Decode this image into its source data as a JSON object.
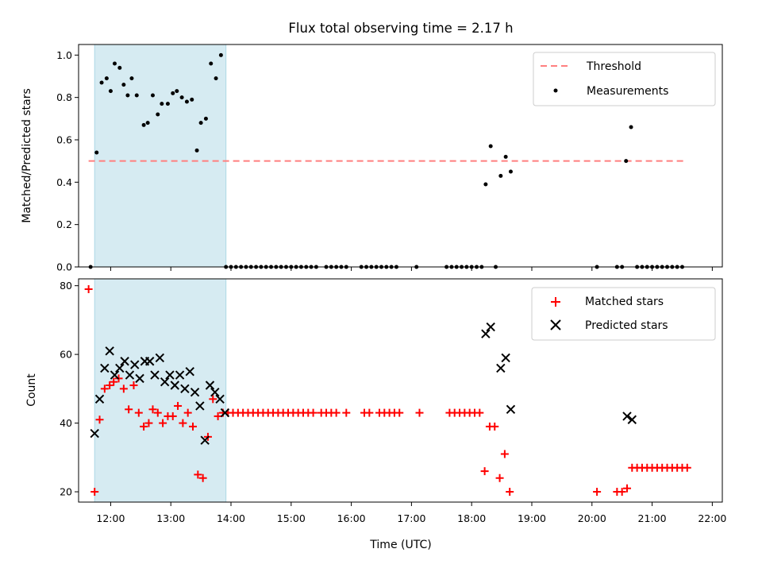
{
  "chart_data": [
    {
      "type": "scatter",
      "title": "Flux total observing time = 2.17 h",
      "ylabel": "Matched/Predicted stars",
      "xlim": [
        "11:28",
        "22:10"
      ],
      "ylim": [
        0,
        1.05
      ],
      "yticks": [
        0.0,
        0.2,
        0.4,
        0.6,
        0.8,
        1.0
      ],
      "ytick_labels": [
        "0.0",
        "0.2",
        "0.4",
        "0.6",
        "0.8",
        "1.0"
      ],
      "shaded_interval": [
        "11:44",
        "13:55"
      ],
      "shade_color": "#add8e6",
      "legend": {
        "position": "top-right",
        "threshold_label": "Threshold",
        "measurements_label": "Measurements"
      },
      "threshold": {
        "value": 0.5,
        "x_range": [
          "11:38",
          "21:32"
        ],
        "color": "#ff7f7f"
      },
      "series": [
        {
          "name": "Measurements",
          "color": "#000000",
          "points": [
            [
              "11:40",
              0
            ],
            [
              "11:46",
              0.54
            ],
            [
              "11:51",
              0.87
            ],
            [
              "11:56",
              0.89
            ],
            [
              "12:00",
              0.83
            ],
            [
              "12:04",
              0.96
            ],
            [
              "12:09",
              0.94
            ],
            [
              "12:13",
              0.86
            ],
            [
              "12:17",
              0.81
            ],
            [
              "12:21",
              0.89
            ],
            [
              "12:26",
              0.81
            ],
            [
              "12:33",
              0.67
            ],
            [
              "12:37",
              0.68
            ],
            [
              "12:42",
              0.81
            ],
            [
              "12:47",
              0.72
            ],
            [
              "12:51",
              0.77
            ],
            [
              "12:57",
              0.77
            ],
            [
              "13:02",
              0.82
            ],
            [
              "13:06",
              0.83
            ],
            [
              "13:11",
              0.8
            ],
            [
              "13:16",
              0.78
            ],
            [
              "13:21",
              0.79
            ],
            [
              "13:26",
              0.55
            ],
            [
              "13:30",
              0.68
            ],
            [
              "13:35",
              0.7
            ],
            [
              "13:40",
              0.96
            ],
            [
              "13:45",
              0.89
            ],
            [
              "13:50",
              1.0
            ],
            [
              "13:55",
              0
            ],
            [
              "14:00",
              0
            ],
            [
              "14:05",
              0
            ],
            [
              "14:10",
              0
            ],
            [
              "14:15",
              0
            ],
            [
              "14:20",
              0
            ],
            [
              "14:25",
              0
            ],
            [
              "14:30",
              0
            ],
            [
              "14:35",
              0
            ],
            [
              "14:40",
              0
            ],
            [
              "14:45",
              0
            ],
            [
              "14:50",
              0
            ],
            [
              "14:55",
              0
            ],
            [
              "15:00",
              0
            ],
            [
              "15:05",
              0
            ],
            [
              "15:10",
              0
            ],
            [
              "15:15",
              0
            ],
            [
              "15:20",
              0
            ],
            [
              "15:25",
              0
            ],
            [
              "15:35",
              0
            ],
            [
              "15:40",
              0
            ],
            [
              "15:45",
              0
            ],
            [
              "15:50",
              0
            ],
            [
              "15:55",
              0
            ],
            [
              "16:10",
              0
            ],
            [
              "16:15",
              0
            ],
            [
              "16:20",
              0
            ],
            [
              "16:25",
              0
            ],
            [
              "16:30",
              0
            ],
            [
              "16:35",
              0
            ],
            [
              "16:40",
              0
            ],
            [
              "16:45",
              0
            ],
            [
              "17:05",
              0
            ],
            [
              "17:35",
              0
            ],
            [
              "17:40",
              0
            ],
            [
              "17:45",
              0
            ],
            [
              "17:50",
              0
            ],
            [
              "17:55",
              0
            ],
            [
              "18:00",
              0
            ],
            [
              "18:05",
              0
            ],
            [
              "18:10",
              0
            ],
            [
              "18:14",
              0.39
            ],
            [
              "18:19",
              0.57
            ],
            [
              "18:24",
              0
            ],
            [
              "18:29",
              0.43
            ],
            [
              "18:34",
              0.52
            ],
            [
              "18:39",
              0.45
            ],
            [
              "20:05",
              0
            ],
            [
              "20:25",
              0
            ],
            [
              "20:30",
              0
            ],
            [
              "20:34",
              0.5
            ],
            [
              "20:39",
              0.66
            ],
            [
              "20:45",
              0
            ],
            [
              "20:50",
              0
            ],
            [
              "20:55",
              0
            ],
            [
              "21:00",
              0
            ],
            [
              "21:05",
              0
            ],
            [
              "21:10",
              0
            ],
            [
              "21:15",
              0
            ],
            [
              "21:20",
              0
            ],
            [
              "21:25",
              0
            ],
            [
              "21:30",
              0
            ]
          ]
        }
      ]
    },
    {
      "type": "scatter",
      "xlabel": "Time (UTC)",
      "ylabel": "Count",
      "xlim": [
        "11:28",
        "22:10"
      ],
      "ylim": [
        17,
        82
      ],
      "xticks": [
        "12:00",
        "13:00",
        "14:00",
        "15:00",
        "16:00",
        "17:00",
        "18:00",
        "19:00",
        "20:00",
        "21:00",
        "22:00"
      ],
      "yticks": [
        20,
        40,
        60,
        80
      ],
      "ytick_labels": [
        "20",
        "40",
        "60",
        "80"
      ],
      "shaded_interval": [
        "11:44",
        "13:55"
      ],
      "shade_color": "#add8e6",
      "legend": {
        "position": "top-right",
        "matched_label": "Matched stars",
        "predicted_label": "Predicted stars"
      },
      "series": [
        {
          "name": "Matched stars",
          "marker": "+",
          "color": "#ff0000",
          "points": [
            [
              "11:38",
              79
            ],
            [
              "11:44",
              20
            ],
            [
              "11:49",
              41
            ],
            [
              "11:54",
              50
            ],
            [
              "11:59",
              51
            ],
            [
              "12:03",
              52
            ],
            [
              "12:08",
              53
            ],
            [
              "12:13",
              50
            ],
            [
              "12:18",
              44
            ],
            [
              "12:23",
              51
            ],
            [
              "12:28",
              43
            ],
            [
              "12:33",
              39
            ],
            [
              "12:38",
              40
            ],
            [
              "12:42",
              44
            ],
            [
              "12:47",
              43
            ],
            [
              "12:52",
              40
            ],
            [
              "12:57",
              42
            ],
            [
              "13:02",
              42
            ],
            [
              "13:07",
              45
            ],
            [
              "13:12",
              40
            ],
            [
              "13:17",
              43
            ],
            [
              "13:22",
              39
            ],
            [
              "13:27",
              25
            ],
            [
              "13:32",
              24
            ],
            [
              "13:37",
              36
            ],
            [
              "13:42",
              47
            ],
            [
              "13:47",
              42
            ],
            [
              "13:52",
              43
            ],
            [
              "13:57",
              43
            ],
            [
              "14:02",
              43
            ],
            [
              "14:07",
              43
            ],
            [
              "14:12",
              43
            ],
            [
              "14:17",
              43
            ],
            [
              "14:22",
              43
            ],
            [
              "14:27",
              43
            ],
            [
              "14:32",
              43
            ],
            [
              "14:37",
              43
            ],
            [
              "14:42",
              43
            ],
            [
              "14:47",
              43
            ],
            [
              "14:52",
              43
            ],
            [
              "14:57",
              43
            ],
            [
              "15:02",
              43
            ],
            [
              "15:07",
              43
            ],
            [
              "15:12",
              43
            ],
            [
              "15:17",
              43
            ],
            [
              "15:22",
              43
            ],
            [
              "15:30",
              43
            ],
            [
              "15:35",
              43
            ],
            [
              "15:40",
              43
            ],
            [
              "15:45",
              43
            ],
            [
              "15:55",
              43
            ],
            [
              "16:13",
              43
            ],
            [
              "16:18",
              43
            ],
            [
              "16:28",
              43
            ],
            [
              "16:33",
              43
            ],
            [
              "16:38",
              43
            ],
            [
              "16:43",
              43
            ],
            [
              "16:48",
              43
            ],
            [
              "17:08",
              43
            ],
            [
              "17:38",
              43
            ],
            [
              "17:43",
              43
            ],
            [
              "17:48",
              43
            ],
            [
              "17:53",
              43
            ],
            [
              "17:58",
              43
            ],
            [
              "18:03",
              43
            ],
            [
              "18:08",
              43
            ],
            [
              "18:13",
              26
            ],
            [
              "18:18",
              39
            ],
            [
              "18:23",
              39
            ],
            [
              "18:28",
              24
            ],
            [
              "18:33",
              31
            ],
            [
              "18:38",
              20
            ],
            [
              "20:05",
              20
            ],
            [
              "20:25",
              20
            ],
            [
              "20:30",
              20
            ],
            [
              "20:35",
              21
            ],
            [
              "20:40",
              27
            ],
            [
              "20:45",
              27
            ],
            [
              "20:50",
              27
            ],
            [
              "20:55",
              27
            ],
            [
              "21:00",
              27
            ],
            [
              "21:05",
              27
            ],
            [
              "21:10",
              27
            ],
            [
              "21:15",
              27
            ],
            [
              "21:20",
              27
            ],
            [
              "21:25",
              27
            ],
            [
              "21:30",
              27
            ],
            [
              "21:35",
              27
            ]
          ]
        },
        {
          "name": "Predicted stars",
          "marker": "x",
          "color": "#000000",
          "points": [
            [
              "11:44",
              37
            ],
            [
              "11:49",
              47
            ],
            [
              "11:54",
              56
            ],
            [
              "11:59",
              61
            ],
            [
              "12:04",
              54
            ],
            [
              "12:09",
              56
            ],
            [
              "12:14",
              58
            ],
            [
              "12:19",
              54
            ],
            [
              "12:24",
              57
            ],
            [
              "12:29",
              53
            ],
            [
              "12:34",
              58
            ],
            [
              "12:39",
              58
            ],
            [
              "12:44",
              54
            ],
            [
              "12:49",
              59
            ],
            [
              "12:54",
              52
            ],
            [
              "12:59",
              54
            ],
            [
              "13:04",
              51
            ],
            [
              "13:09",
              54
            ],
            [
              "13:14",
              50
            ],
            [
              "13:19",
              55
            ],
            [
              "13:24",
              49
            ],
            [
              "13:29",
              45
            ],
            [
              "13:34",
              35
            ],
            [
              "13:39",
              51
            ],
            [
              "13:44",
              49
            ],
            [
              "13:49",
              47
            ],
            [
              "13:54",
              43
            ],
            [
              "18:14",
              66
            ],
            [
              "18:19",
              68
            ],
            [
              "18:29",
              56
            ],
            [
              "18:34",
              59
            ],
            [
              "18:39",
              44
            ],
            [
              "20:35",
              42
            ],
            [
              "20:40",
              41
            ]
          ]
        }
      ]
    }
  ]
}
